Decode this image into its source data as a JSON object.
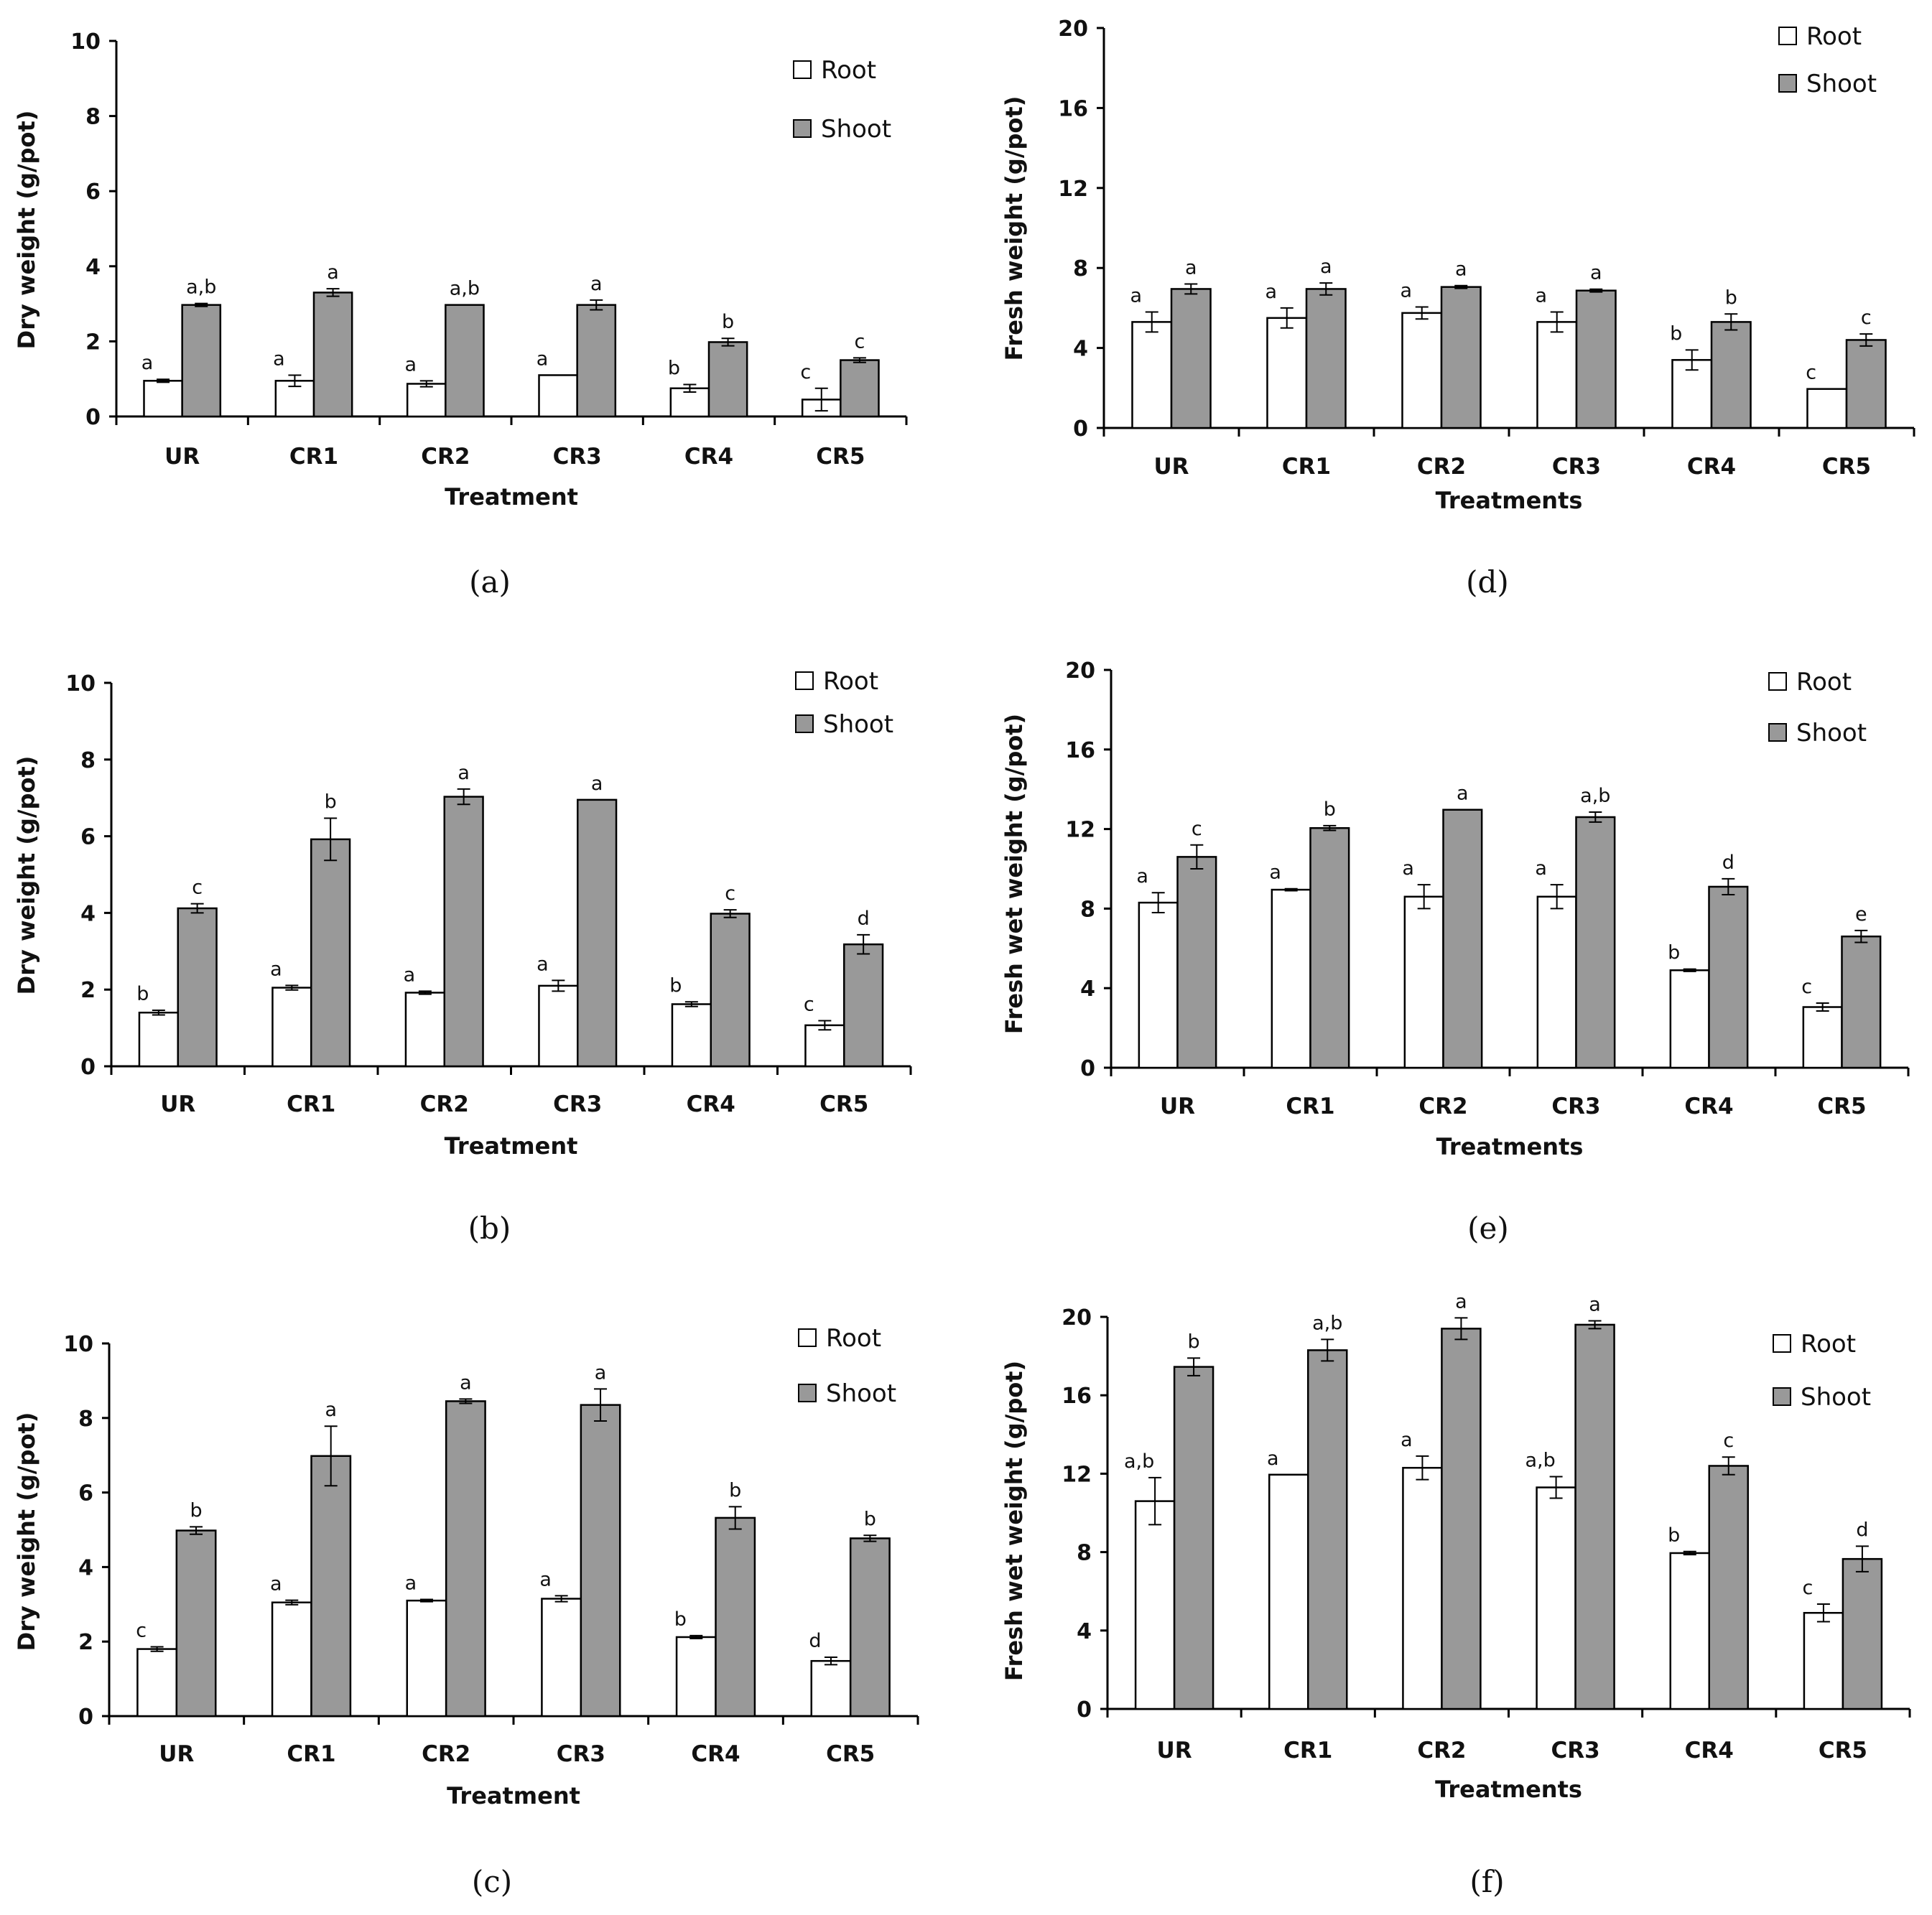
{
  "colors": {
    "root": "#ffffff",
    "shoot": "#999999",
    "stroke": "#000000"
  },
  "chart_data": [
    {
      "type": "bar",
      "panel": "(a)",
      "ylabel": "Dry weight (g/pot)",
      "xlabel": "Treatment",
      "categories": [
        "UR",
        "CR1",
        "CR2",
        "CR3",
        "CR4",
        "CR5"
      ],
      "ylim": [
        0,
        10
      ],
      "yticks": [
        0,
        2,
        4,
        6,
        8,
        10
      ],
      "legend": "top-right",
      "series": [
        {
          "name": "Root",
          "values": [
            0.95,
            0.95,
            0.87,
            1.1,
            0.75,
            0.45
          ],
          "errors": [
            0.04,
            0.15,
            0.08,
            0,
            0.1,
            0.3
          ],
          "labels": [
            "a",
            "a",
            "a",
            "a",
            "b",
            "c"
          ]
        },
        {
          "name": "Shoot",
          "values": [
            2.97,
            3.3,
            2.97,
            2.97,
            1.98,
            1.5
          ],
          "errors": [
            0.04,
            0.1,
            0,
            0.13,
            0.1,
            0.06
          ],
          "labels": [
            "a,b",
            "a",
            "a,b",
            "a",
            "b",
            "c"
          ]
        }
      ]
    },
    {
      "type": "bar",
      "panel": "(b)",
      "ylabel": "Dry weight (g/pot)",
      "xlabel": "Treatment",
      "categories": [
        "UR",
        "CR1",
        "CR2",
        "CR3",
        "CR4",
        "CR5"
      ],
      "ylim": [
        0,
        10
      ],
      "yticks": [
        0,
        2,
        4,
        6,
        8,
        10
      ],
      "legend": "top-right",
      "series": [
        {
          "name": "Root",
          "values": [
            1.4,
            2.05,
            1.92,
            2.1,
            1.62,
            1.07
          ],
          "errors": [
            0.06,
            0.06,
            0.04,
            0.14,
            0.06,
            0.12
          ],
          "labels": [
            "b",
            "a",
            "a",
            "a",
            "b",
            "c"
          ]
        },
        {
          "name": "Shoot",
          "values": [
            4.12,
            5.92,
            7.03,
            6.95,
            3.98,
            3.18
          ],
          "errors": [
            0.12,
            0.55,
            0.2,
            0,
            0.1,
            0.25
          ],
          "labels": [
            "c",
            "b",
            "a",
            "a",
            "c",
            "d"
          ]
        }
      ]
    },
    {
      "type": "bar",
      "panel": "(c)",
      "ylabel": "Dry weight (g/pot)",
      "xlabel": "Treatment",
      "categories": [
        "UR",
        "CR1",
        "CR2",
        "CR3",
        "CR4",
        "CR5"
      ],
      "ylim": [
        0,
        10
      ],
      "yticks": [
        0,
        2,
        4,
        6,
        8,
        10
      ],
      "legend": "top-right",
      "series": [
        {
          "name": "Root",
          "values": [
            1.8,
            3.05,
            3.1,
            3.15,
            2.12,
            1.48
          ],
          "errors": [
            0.06,
            0.06,
            0.03,
            0.08,
            0.04,
            0.1
          ],
          "labels": [
            "c",
            "a",
            "a",
            "a",
            "b",
            "d"
          ]
        },
        {
          "name": "Shoot",
          "values": [
            4.98,
            6.98,
            8.45,
            8.35,
            5.32,
            4.77
          ],
          "errors": [
            0.1,
            0.8,
            0.06,
            0.43,
            0.3,
            0.08
          ],
          "labels": [
            "b",
            "a",
            "a",
            "a",
            "b",
            "b"
          ]
        }
      ]
    },
    {
      "type": "bar",
      "panel": "(d)",
      "ylabel": "Fresh weight (g/pot)",
      "xlabel": "Treatments",
      "categories": [
        "UR",
        "CR1",
        "CR2",
        "CR3",
        "CR4",
        "CR5"
      ],
      "ylim": [
        0,
        20
      ],
      "yticks": [
        0,
        4,
        8,
        12,
        16,
        20
      ],
      "legend": "top-right",
      "series": [
        {
          "name": "Root",
          "values": [
            5.3,
            5.5,
            5.75,
            5.3,
            3.4,
            1.95
          ],
          "errors": [
            0.5,
            0.5,
            0.3,
            0.5,
            0.5,
            0
          ],
          "labels": [
            "a",
            "a",
            "a",
            "a",
            "b",
            "c"
          ]
        },
        {
          "name": "Shoot",
          "values": [
            6.95,
            6.95,
            7.05,
            6.87,
            5.3,
            4.4
          ],
          "errors": [
            0.25,
            0.3,
            0.07,
            0.07,
            0.4,
            0.3
          ],
          "labels": [
            "a",
            "a",
            "a",
            "a",
            "b",
            "c"
          ]
        }
      ]
    },
    {
      "type": "bar",
      "panel": "(e)",
      "ylabel": "Fresh wet weight (g/pot)",
      "xlabel": "Treatments",
      "categories": [
        "UR",
        "CR1",
        "CR2",
        "CR3",
        "CR4",
        "CR5"
      ],
      "ylim": [
        0,
        20
      ],
      "yticks": [
        0,
        4,
        8,
        12,
        16,
        20
      ],
      "legend": "top-right",
      "series": [
        {
          "name": "Root",
          "values": [
            8.3,
            8.95,
            8.6,
            8.6,
            4.9,
            3.05
          ],
          "errors": [
            0.5,
            0.05,
            0.6,
            0.6,
            0.06,
            0.2
          ],
          "labels": [
            "a",
            "a",
            "a",
            "a",
            "b",
            "c"
          ]
        },
        {
          "name": "Shoot",
          "values": [
            10.6,
            12.05,
            12.97,
            12.6,
            9.1,
            6.6
          ],
          "errors": [
            0.6,
            0.12,
            0,
            0.25,
            0.4,
            0.3
          ],
          "labels": [
            "c",
            "b",
            "a",
            "a,b",
            "d",
            "e"
          ]
        }
      ]
    },
    {
      "type": "bar",
      "panel": "(f)",
      "ylabel": "Fresh wet weight (g/pot)",
      "xlabel": "Treatments",
      "categories": [
        "UR",
        "CR1",
        "CR2",
        "CR3",
        "CR4",
        "CR5"
      ],
      "ylim": [
        0,
        20
      ],
      "yticks": [
        0,
        4,
        8,
        12,
        16,
        20
      ],
      "legend": "top-right",
      "series": [
        {
          "name": "Root",
          "values": [
            10.6,
            11.95,
            12.3,
            11.3,
            7.95,
            4.9
          ],
          "errors": [
            1.2,
            0,
            0.6,
            0.55,
            0.08,
            0.45
          ],
          "labels": [
            "a,b",
            "a",
            "a",
            "a,b",
            "b",
            "c"
          ]
        },
        {
          "name": "Shoot",
          "values": [
            17.45,
            18.3,
            19.4,
            19.6,
            12.4,
            7.65
          ],
          "errors": [
            0.45,
            0.55,
            0.55,
            0.2,
            0.45,
            0.65
          ],
          "labels": [
            "b",
            "a,b",
            "a",
            "a",
            "c",
            "d"
          ]
        }
      ]
    }
  ]
}
